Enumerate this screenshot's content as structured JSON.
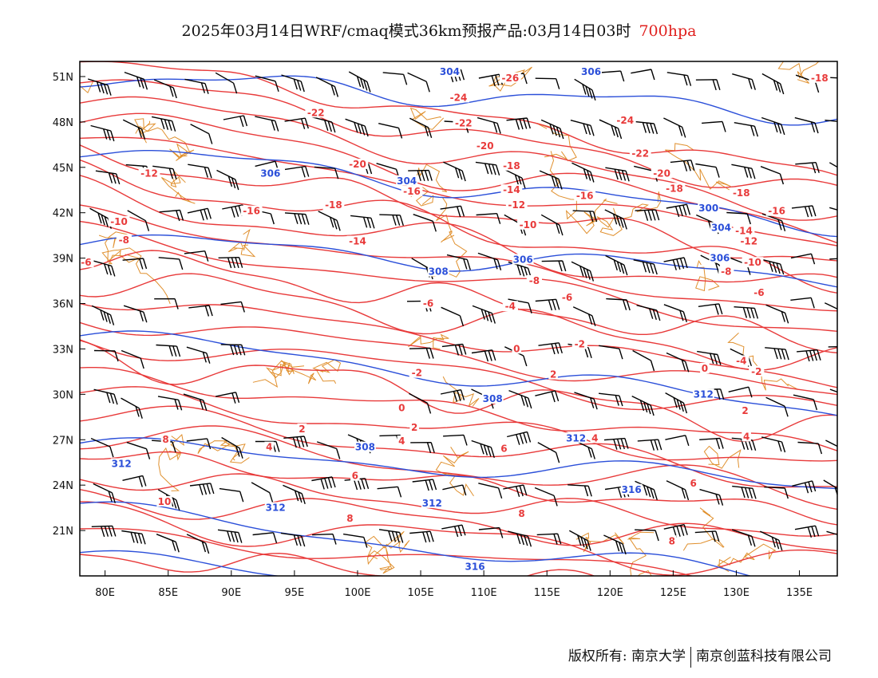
{
  "title": {
    "main": "2025年03月14日WRF/cmaq模式36km预报产品:03月14日03时",
    "level": "700hpa"
  },
  "colors": {
    "temperature": "#e83a3a",
    "geopotential": "#2b4fd9",
    "boundaries": "#e0902e",
    "wind": "#000000"
  },
  "map": {
    "lon_range": [
      78,
      138
    ],
    "lat_range": [
      18,
      52
    ],
    "lon_ticks": [
      "80E",
      "85E",
      "90E",
      "95E",
      "100E",
      "105E",
      "110E",
      "115E",
      "120E",
      "125E",
      "130E",
      "135E"
    ],
    "lat_ticks": [
      "51N",
      "48N",
      "45N",
      "42N",
      "39N",
      "36N",
      "33N",
      "30N",
      "27N",
      "24N",
      "21N"
    ]
  },
  "temperature_labels": [
    {
      "text": "-26",
      "lon": 112.1,
      "lat": 50.8
    },
    {
      "text": "-24",
      "lon": 108.0,
      "lat": 49.5
    },
    {
      "text": "-24",
      "lon": 121.2,
      "lat": 48.0
    },
    {
      "text": "-22",
      "lon": 96.7,
      "lat": 48.5
    },
    {
      "text": "-22",
      "lon": 108.4,
      "lat": 47.8
    },
    {
      "text": "-22",
      "lon": 122.4,
      "lat": 45.8
    },
    {
      "text": "-20",
      "lon": 110.1,
      "lat": 46.3
    },
    {
      "text": "-20",
      "lon": 100.0,
      "lat": 45.1
    },
    {
      "text": "-20",
      "lon": 124.1,
      "lat": 44.5
    },
    {
      "text": "-18",
      "lon": 136.6,
      "lat": 50.8
    },
    {
      "text": "-18",
      "lon": 112.2,
      "lat": 45.0
    },
    {
      "text": "-18",
      "lon": 125.1,
      "lat": 43.5
    },
    {
      "text": "-18",
      "lon": 130.4,
      "lat": 43.2
    },
    {
      "text": "-18",
      "lon": 98.1,
      "lat": 42.4
    },
    {
      "text": "-16",
      "lon": 104.3,
      "lat": 43.3
    },
    {
      "text": "-16",
      "lon": 118.0,
      "lat": 43.0
    },
    {
      "text": "-16",
      "lon": 91.6,
      "lat": 42.0
    },
    {
      "text": "-16",
      "lon": 133.2,
      "lat": 42.0
    },
    {
      "text": "-14",
      "lon": 112.2,
      "lat": 43.4
    },
    {
      "text": "-14",
      "lon": 130.6,
      "lat": 40.7
    },
    {
      "text": "-14",
      "lon": 100.0,
      "lat": 40.0
    },
    {
      "text": "-12",
      "lon": 83.5,
      "lat": 44.5
    },
    {
      "text": "-12",
      "lon": 112.6,
      "lat": 42.4
    },
    {
      "text": "-12",
      "lon": 131.0,
      "lat": 40.0
    },
    {
      "text": "-10",
      "lon": 81.1,
      "lat": 41.3
    },
    {
      "text": "-10",
      "lon": 113.5,
      "lat": 41.1
    },
    {
      "text": "-10",
      "lon": 131.3,
      "lat": 38.6
    },
    {
      "text": "-8",
      "lon": 81.5,
      "lat": 40.1
    },
    {
      "text": "-8",
      "lon": 114.0,
      "lat": 37.4
    },
    {
      "text": "-8",
      "lon": 129.2,
      "lat": 38.0
    },
    {
      "text": "-6",
      "lon": 78.5,
      "lat": 38.6
    },
    {
      "text": "-6",
      "lon": 116.6,
      "lat": 36.3
    },
    {
      "text": "-6",
      "lon": 131.8,
      "lat": 36.6
    },
    {
      "text": "-6",
      "lon": 105.6,
      "lat": 35.9
    },
    {
      "text": "-4",
      "lon": 112.1,
      "lat": 35.7
    },
    {
      "text": "-4",
      "lon": 130.4,
      "lat": 32.1
    },
    {
      "text": "-2",
      "lon": 117.6,
      "lat": 33.2
    },
    {
      "text": "-2",
      "lon": 104.7,
      "lat": 31.3
    },
    {
      "text": "-2",
      "lon": 131.6,
      "lat": 31.4
    },
    {
      "text": "0",
      "lon": 112.6,
      "lat": 32.9
    },
    {
      "text": "0",
      "lon": 127.5,
      "lat": 31.6
    },
    {
      "text": "0",
      "lon": 103.5,
      "lat": 29.0
    },
    {
      "text": "2",
      "lon": 95.6,
      "lat": 27.6
    },
    {
      "text": "2",
      "lon": 104.5,
      "lat": 27.7
    },
    {
      "text": "2",
      "lon": 115.5,
      "lat": 31.2
    },
    {
      "text": "2",
      "lon": 130.7,
      "lat": 28.8
    },
    {
      "text": "4",
      "lon": 93.0,
      "lat": 26.4
    },
    {
      "text": "4",
      "lon": 103.5,
      "lat": 26.8
    },
    {
      "text": "4",
      "lon": 118.8,
      "lat": 27.0
    },
    {
      "text": "4",
      "lon": 130.8,
      "lat": 27.1
    },
    {
      "text": "6",
      "lon": 99.8,
      "lat": 24.5
    },
    {
      "text": "6",
      "lon": 111.6,
      "lat": 26.3
    },
    {
      "text": "6",
      "lon": 126.6,
      "lat": 24.0
    },
    {
      "text": "8",
      "lon": 84.8,
      "lat": 26.9
    },
    {
      "text": "8",
      "lon": 99.4,
      "lat": 21.7
    },
    {
      "text": "8",
      "lon": 113.0,
      "lat": 22.0
    },
    {
      "text": "8",
      "lon": 124.9,
      "lat": 20.2
    },
    {
      "text": "10",
      "lon": 84.7,
      "lat": 22.8
    }
  ],
  "geopotential_labels": [
    {
      "text": "304",
      "lon": 107.3,
      "lat": 51.2
    },
    {
      "text": "304",
      "lon": 103.9,
      "lat": 44.0
    },
    {
      "text": "304",
      "lon": 128.8,
      "lat": 40.9
    },
    {
      "text": "306",
      "lon": 118.5,
      "lat": 51.2
    },
    {
      "text": "306",
      "lon": 93.1,
      "lat": 44.5
    },
    {
      "text": "306",
      "lon": 113.1,
      "lat": 38.8
    },
    {
      "text": "306",
      "lon": 128.7,
      "lat": 38.9
    },
    {
      "text": "300",
      "lon": 127.8,
      "lat": 42.2
    },
    {
      "text": "308",
      "lon": 106.4,
      "lat": 38.0
    },
    {
      "text": "308",
      "lon": 110.7,
      "lat": 29.6
    },
    {
      "text": "308",
      "lon": 100.6,
      "lat": 26.4
    },
    {
      "text": "312",
      "lon": 81.3,
      "lat": 25.3
    },
    {
      "text": "312",
      "lon": 93.5,
      "lat": 22.4
    },
    {
      "text": "312",
      "lon": 105.9,
      "lat": 22.7
    },
    {
      "text": "312",
      "lon": 117.3,
      "lat": 27.0
    },
    {
      "text": "312",
      "lon": 127.4,
      "lat": 29.9
    },
    {
      "text": "316",
      "lon": 121.7,
      "lat": 23.6
    },
    {
      "text": "316",
      "lon": 109.3,
      "lat": 18.5
    }
  ],
  "footer": {
    "left": "版权所有: 南京大学",
    "right": "南京创蓝科技有限公司"
  }
}
